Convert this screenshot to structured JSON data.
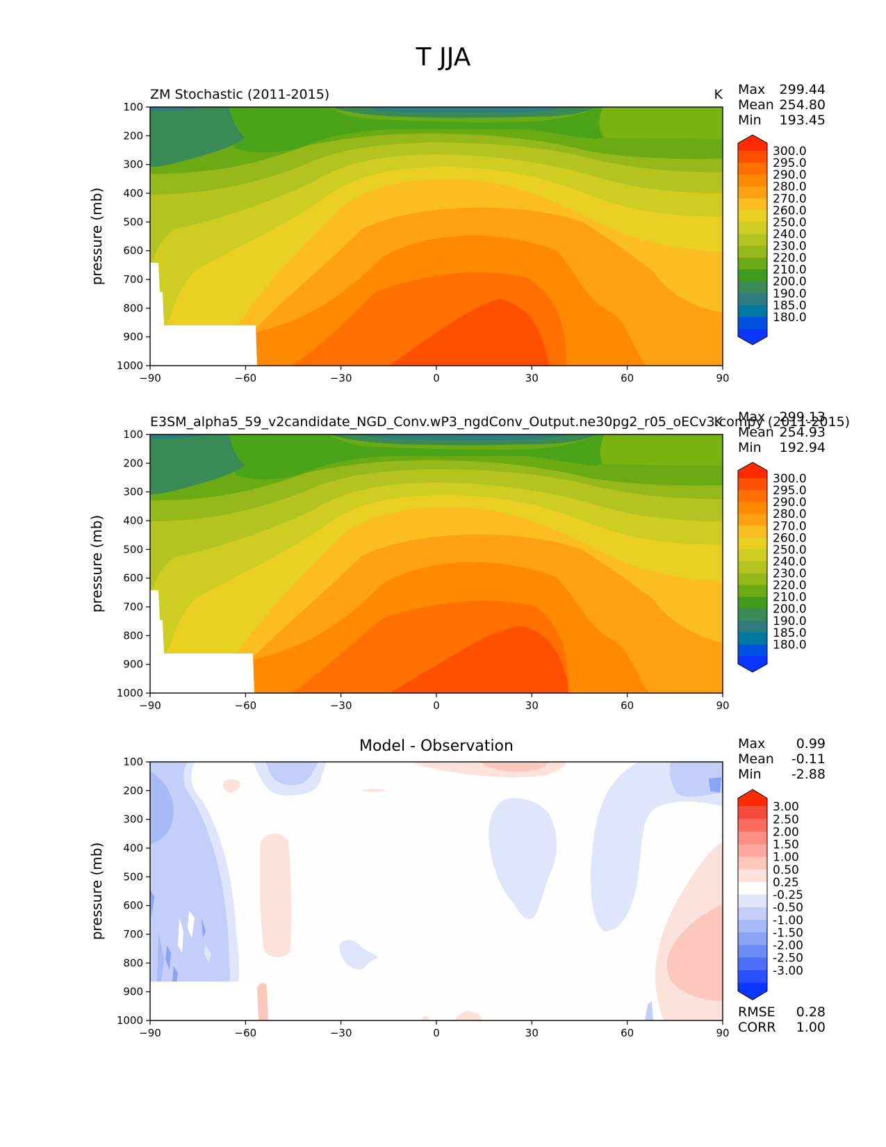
{
  "figure_title": "T JJA",
  "chart_data": [
    {
      "type": "contour",
      "title": "ZM Stochastic (2011-2015)",
      "units": "K",
      "xlabel": "",
      "ylabel": "pressure (mb)",
      "x_ticks": [
        "−90",
        "−60",
        "−30",
        "0",
        "30",
        "60",
        "90"
      ],
      "y_ticks": [
        "100",
        "200",
        "300",
        "400",
        "500",
        "600",
        "700",
        "800",
        "900",
        "1000"
      ],
      "xlim": [
        -90,
        90
      ],
      "ylim": [
        1000,
        100
      ],
      "stats": {
        "max_label": "Max",
        "max": "299.44",
        "mean_label": "Mean",
        "mean": "254.80",
        "min_label": "Min",
        "min": "193.45"
      },
      "levels": [
        "300.0",
        "295.0",
        "290.0",
        "280.0",
        "270.0",
        "260.0",
        "250.0",
        "240.0",
        "230.0",
        "220.0",
        "210.0",
        "200.0",
        "190.0",
        "185.0",
        "180.0"
      ],
      "level_colors": [
        "#ff2a00",
        "#ff5000",
        "#ff7000",
        "#ff8a00",
        "#ffa112",
        "#fcbd20",
        "#e8cf22",
        "#cfcc22",
        "#b4c31f",
        "#96b81a",
        "#6aab14",
        "#3f9a1e",
        "#3a8a55",
        "#2e7c80",
        "#0079a0",
        "#0050e0",
        "#0a35ff"
      ]
    },
    {
      "type": "contour",
      "title": "E3SM_alpha5_59_v2candidate_NGD_Conv.wP3_ngdConv_Output.ne30pg2_r05_oECv3.compy (2011-2015)",
      "units": "K",
      "xlabel": "",
      "ylabel": "pressure (mb)",
      "x_ticks": [
        "−90",
        "−60",
        "−30",
        "0",
        "30",
        "60",
        "90"
      ],
      "y_ticks": [
        "100",
        "200",
        "300",
        "400",
        "500",
        "600",
        "700",
        "800",
        "900",
        "1000"
      ],
      "xlim": [
        -90,
        90
      ],
      "ylim": [
        1000,
        100
      ],
      "stats": {
        "max_label": "Max",
        "max": "299.13",
        "mean_label": "Mean",
        "mean": "254.93",
        "min_label": "Min",
        "min": "192.94"
      },
      "levels": [
        "300.0",
        "295.0",
        "290.0",
        "280.0",
        "270.0",
        "260.0",
        "250.0",
        "240.0",
        "230.0",
        "220.0",
        "210.0",
        "200.0",
        "190.0",
        "185.0",
        "180.0"
      ]
    },
    {
      "type": "contour",
      "title": "Model - Observation",
      "xlabel": "",
      "ylabel": "pressure (mb)",
      "x_ticks": [
        "−90",
        "−60",
        "−30",
        "0",
        "30",
        "60",
        "90"
      ],
      "y_ticks": [
        "100",
        "200",
        "300",
        "400",
        "500",
        "600",
        "700",
        "800",
        "900",
        "1000"
      ],
      "xlim": [
        -90,
        90
      ],
      "ylim": [
        1000,
        100
      ],
      "stats": {
        "max_label": "Max",
        "max": "0.99",
        "mean_label": "Mean",
        "mean": "-0.11",
        "min_label": "Min",
        "min": "-2.88"
      },
      "levels": [
        "3.00",
        "2.50",
        "2.00",
        "1.50",
        "1.00",
        "0.50",
        "0.25",
        "-0.25",
        "-0.50",
        "-1.00",
        "-1.50",
        "-2.00",
        "-2.50",
        "-3.00"
      ],
      "level_colors": [
        "#ff2a00",
        "#f54a3a",
        "#fa6c5e",
        "#fc8e82",
        "#fda99d",
        "#fdc7bd",
        "#fde2dc",
        "#fefefe",
        "#dfe6fc",
        "#c3cff9",
        "#a8baf7",
        "#8aa3f5",
        "#6a8af5",
        "#4b6ef8",
        "#2a50fb",
        "#0a35ff"
      ],
      "rmse_label": "RMSE",
      "rmse": "0.28",
      "corr_label": "CORR",
      "corr": "1.00"
    }
  ]
}
